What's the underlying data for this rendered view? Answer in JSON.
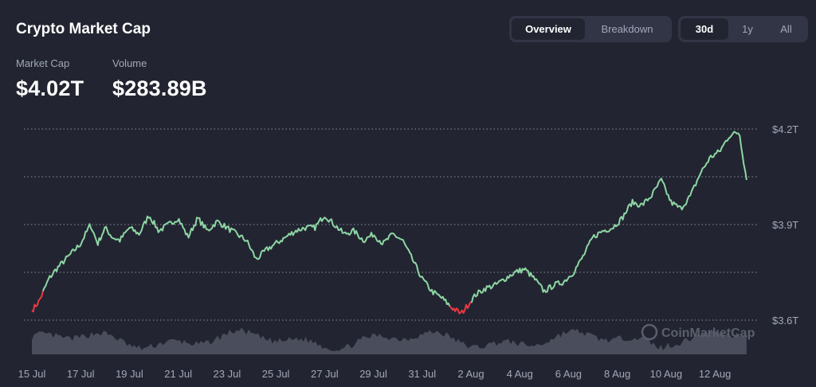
{
  "header": {
    "title": "Crypto Market Cap",
    "view_tabs": [
      {
        "label": "Overview",
        "active": true
      },
      {
        "label": "Breakdown",
        "active": false
      }
    ],
    "range_tabs": [
      {
        "label": "30d",
        "active": true
      },
      {
        "label": "1y",
        "active": false
      },
      {
        "label": "All",
        "active": false
      }
    ]
  },
  "stats": {
    "market_cap": {
      "label": "Market Cap",
      "value": "$4.02T"
    },
    "volume": {
      "label": "Volume",
      "value": "$283.89B"
    }
  },
  "watermark": "CoinMarketCap",
  "colors": {
    "background": "#222531",
    "up": "#16c784",
    "line": "#8ed6a4",
    "down": "#ea3943",
    "volume": "#6b6f7d",
    "grid": "#8a8e9c"
  },
  "chart_data": {
    "type": "line",
    "x_ticks": [
      "15 Jul",
      "17 Jul",
      "19 Jul",
      "21 Jul",
      "23 Jul",
      "25 Jul",
      "27 Jul",
      "29 Jul",
      "31 Jul",
      "2 Aug",
      "4 Aug",
      "6 Aug",
      "8 Aug",
      "10 Aug",
      "12 Aug"
    ],
    "y_ticks": [
      "$4.2T",
      "$3.9T",
      "$3.6T"
    ],
    "ylim": [
      3.6,
      4.2
    ],
    "x_range_days": [
      0,
      29.5
    ],
    "series": [
      {
        "values_x_days": [
          0,
          0.3,
          0.7,
          1.0,
          1.5,
          2.0,
          2.4,
          2.7,
          3.0,
          3.3,
          3.6,
          4.0,
          4.4,
          4.8,
          5.2,
          5.6,
          6.0,
          6.4,
          6.8,
          7.2,
          7.6,
          8.0,
          8.4,
          8.8,
          9.2,
          9.6,
          10.0,
          10.4,
          10.8,
          11.2,
          11.6,
          12.0,
          12.4,
          12.8,
          13.2,
          13.6,
          14.0,
          14.4,
          14.8,
          15.2,
          15.6,
          16.0,
          16.4,
          16.8,
          17.2,
          17.6,
          17.9,
          18.2,
          18.6,
          19.0,
          19.4,
          19.8,
          20.2,
          20.6,
          21.0,
          21.4,
          21.8,
          22.2,
          22.6,
          23.0,
          23.4,
          23.8,
          24.2,
          24.6,
          25.0,
          25.4,
          25.8,
          26.2,
          26.6,
          27.0,
          27.4,
          27.8,
          28.2,
          28.6,
          29.0,
          29.3
        ],
        "values": [
          3.63,
          3.66,
          3.73,
          3.76,
          3.8,
          3.84,
          3.9,
          3.84,
          3.89,
          3.86,
          3.85,
          3.89,
          3.87,
          3.93,
          3.88,
          3.9,
          3.92,
          3.86,
          3.92,
          3.88,
          3.91,
          3.89,
          3.87,
          3.85,
          3.79,
          3.82,
          3.84,
          3.86,
          3.88,
          3.89,
          3.89,
          3.93,
          3.9,
          3.87,
          3.88,
          3.85,
          3.87,
          3.84,
          3.87,
          3.85,
          3.79,
          3.73,
          3.69,
          3.67,
          3.64,
          3.62,
          3.65,
          3.68,
          3.7,
          3.71,
          3.73,
          3.75,
          3.76,
          3.73,
          3.69,
          3.71,
          3.72,
          3.75,
          3.8,
          3.86,
          3.88,
          3.89,
          3.92,
          3.97,
          3.96,
          3.99,
          4.04,
          3.97,
          3.95,
          3.99,
          4.06,
          4.11,
          4.13,
          4.18,
          4.19,
          4.04
        ]
      }
    ],
    "red_segments_days": [
      [
        0,
        0.4
      ],
      [
        17.1,
        18.0
      ]
    ],
    "volume_label": "",
    "grid": true
  }
}
